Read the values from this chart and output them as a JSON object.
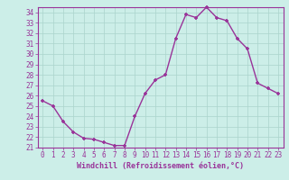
{
  "x": [
    0,
    1,
    2,
    3,
    4,
    5,
    6,
    7,
    8,
    9,
    10,
    11,
    12,
    13,
    14,
    15,
    16,
    17,
    18,
    19,
    20,
    21,
    22,
    23
  ],
  "y": [
    25.5,
    25.0,
    23.5,
    22.5,
    21.9,
    21.8,
    21.5,
    21.2,
    21.2,
    24.0,
    26.2,
    27.5,
    28.0,
    31.5,
    33.8,
    33.5,
    34.5,
    33.5,
    33.2,
    31.5,
    30.5,
    27.2,
    26.7,
    26.2
  ],
  "line_color": "#993399",
  "marker": "+",
  "bg_color": "#cceee8",
  "grid_color": "#aad4cc",
  "axis_color": "#993399",
  "border_color": "#993399",
  "xlabel": "Windchill (Refroidissement éolien,°C)",
  "ylim": [
    21,
    34.5
  ],
  "xlim": [
    -0.5,
    23.5
  ],
  "yticks": [
    21,
    22,
    23,
    24,
    25,
    26,
    27,
    28,
    29,
    30,
    31,
    32,
    33,
    34
  ],
  "xticks": [
    0,
    1,
    2,
    3,
    4,
    5,
    6,
    7,
    8,
    9,
    10,
    11,
    12,
    13,
    14,
    15,
    16,
    17,
    18,
    19,
    20,
    21,
    22,
    23
  ],
  "tick_fontsize": 5.5,
  "label_fontsize": 6.0,
  "markersize": 3.5,
  "linewidth": 1.0
}
